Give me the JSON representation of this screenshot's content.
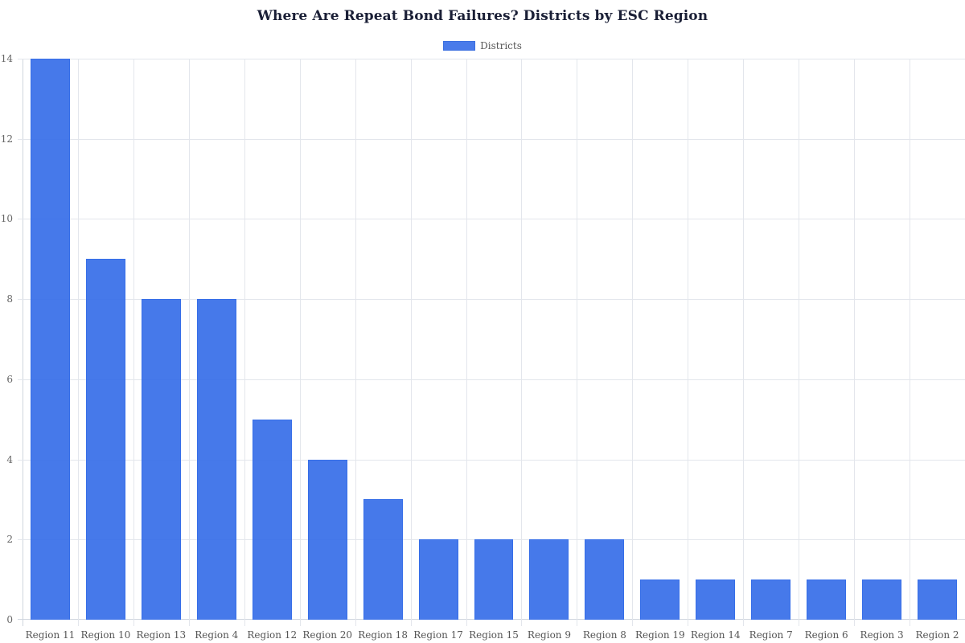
{
  "chart_data": {
    "type": "bar",
    "title": "Where Are Repeat Bond Failures? Districts by ESC Region",
    "xlabel": "",
    "ylabel": "",
    "categories": [
      "Region 11",
      "Region 10",
      "Region 13",
      "Region 4",
      "Region 12",
      "Region 20",
      "Region 18",
      "Region 17",
      "Region 15",
      "Region 9",
      "Region 8",
      "Region 19",
      "Region 14",
      "Region 7",
      "Region 6",
      "Region 3",
      "Region 2"
    ],
    "series": [
      {
        "name": "Districts",
        "color": "#4a7bea",
        "values": [
          14,
          9,
          8,
          8,
          5,
          4,
          3,
          2,
          2,
          2,
          2,
          1,
          1,
          1,
          1,
          1,
          1
        ]
      }
    ],
    "ylim": [
      0,
      14
    ],
    "yticks": [
      0,
      2,
      4,
      6,
      8,
      10,
      12,
      14
    ],
    "grid": true,
    "legend_position": "top"
  },
  "legend": {
    "label": "Districts"
  }
}
